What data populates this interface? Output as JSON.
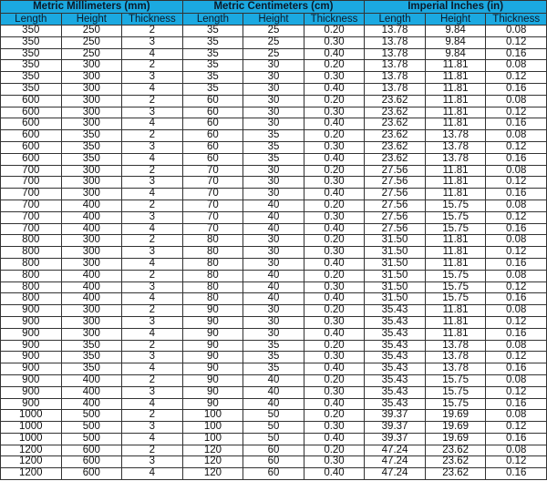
{
  "header": {
    "groups": [
      "Metric Millimeters (mm)",
      "Metric Centimeters (cm)",
      "Imperial Inches (in)"
    ],
    "columns": [
      "Length",
      "Height",
      "Thickness",
      "Length",
      "Height",
      "Thickness",
      "Length",
      "Height",
      "Thickness"
    ],
    "color": "#1ba9e1"
  },
  "rows": [
    [
      "350",
      "250",
      "2",
      "35",
      "25",
      "0.20",
      "13.78",
      "9.84",
      "0.08"
    ],
    [
      "350",
      "250",
      "3",
      "35",
      "25",
      "0.30",
      "13.78",
      "9.84",
      "0.12"
    ],
    [
      "350",
      "250",
      "4",
      "35",
      "25",
      "0.40",
      "13.78",
      "9.84",
      "0.16"
    ],
    [
      "350",
      "300",
      "2",
      "35",
      "30",
      "0.20",
      "13.78",
      "11.81",
      "0.08"
    ],
    [
      "350",
      "300",
      "3",
      "35",
      "30",
      "0.30",
      "13.78",
      "11.81",
      "0.12"
    ],
    [
      "350",
      "300",
      "4",
      "35",
      "30",
      "0.40",
      "13.78",
      "11.81",
      "0.16"
    ],
    [
      "600",
      "300",
      "2",
      "60",
      "30",
      "0.20",
      "23.62",
      "11.81",
      "0.08"
    ],
    [
      "600",
      "300",
      "3",
      "60",
      "30",
      "0.30",
      "23.62",
      "11.81",
      "0.12"
    ],
    [
      "600",
      "300",
      "4",
      "60",
      "30",
      "0.40",
      "23.62",
      "11.81",
      "0.16"
    ],
    [
      "600",
      "350",
      "2",
      "60",
      "35",
      "0.20",
      "23.62",
      "13.78",
      "0.08"
    ],
    [
      "600",
      "350",
      "3",
      "60",
      "35",
      "0.30",
      "23.62",
      "13.78",
      "0.12"
    ],
    [
      "600",
      "350",
      "4",
      "60",
      "35",
      "0.40",
      "23.62",
      "13.78",
      "0.16"
    ],
    [
      "700",
      "300",
      "2",
      "70",
      "30",
      "0.20",
      "27.56",
      "11.81",
      "0.08"
    ],
    [
      "700",
      "300",
      "3",
      "70",
      "30",
      "0.30",
      "27.56",
      "11.81",
      "0.12"
    ],
    [
      "700",
      "300",
      "4",
      "70",
      "30",
      "0.40",
      "27.56",
      "11.81",
      "0.16"
    ],
    [
      "700",
      "400",
      "2",
      "70",
      "40",
      "0.20",
      "27.56",
      "15.75",
      "0.08"
    ],
    [
      "700",
      "400",
      "3",
      "70",
      "40",
      "0.30",
      "27.56",
      "15.75",
      "0.12"
    ],
    [
      "700",
      "400",
      "4",
      "70",
      "40",
      "0.40",
      "27.56",
      "15.75",
      "0.16"
    ],
    [
      "800",
      "300",
      "2",
      "80",
      "30",
      "0.20",
      "31.50",
      "11.81",
      "0.08"
    ],
    [
      "800",
      "300",
      "3",
      "80",
      "30",
      "0.30",
      "31.50",
      "11.81",
      "0.12"
    ],
    [
      "800",
      "300",
      "4",
      "80",
      "30",
      "0.40",
      "31.50",
      "11.81",
      "0.16"
    ],
    [
      "800",
      "400",
      "2",
      "80",
      "40",
      "0.20",
      "31.50",
      "15.75",
      "0.08"
    ],
    [
      "800",
      "400",
      "3",
      "80",
      "40",
      "0.30",
      "31.50",
      "15.75",
      "0.12"
    ],
    [
      "800",
      "400",
      "4",
      "80",
      "40",
      "0.40",
      "31.50",
      "15.75",
      "0.16"
    ],
    [
      "900",
      "300",
      "2",
      "90",
      "30",
      "0.20",
      "35.43",
      "11.81",
      "0.08"
    ],
    [
      "900",
      "300",
      "3",
      "90",
      "30",
      "0.30",
      "35.43",
      "11.81",
      "0.12"
    ],
    [
      "900",
      "300",
      "4",
      "90",
      "30",
      "0.40",
      "35.43",
      "11.81",
      "0.16"
    ],
    [
      "900",
      "350",
      "2",
      "90",
      "35",
      "0.20",
      "35.43",
      "13.78",
      "0.08"
    ],
    [
      "900",
      "350",
      "3",
      "90",
      "35",
      "0.30",
      "35.43",
      "13.78",
      "0.12"
    ],
    [
      "900",
      "350",
      "4",
      "90",
      "35",
      "0.40",
      "35.43",
      "13.78",
      "0.16"
    ],
    [
      "900",
      "400",
      "2",
      "90",
      "40",
      "0.20",
      "35.43",
      "15.75",
      "0.08"
    ],
    [
      "900",
      "400",
      "3",
      "90",
      "40",
      "0.30",
      "35.43",
      "15.75",
      "0.12"
    ],
    [
      "900",
      "400",
      "4",
      "90",
      "40",
      "0.40",
      "35.43",
      "15.75",
      "0.16"
    ],
    [
      "1000",
      "500",
      "2",
      "100",
      "50",
      "0.20",
      "39.37",
      "19.69",
      "0.08"
    ],
    [
      "1000",
      "500",
      "3",
      "100",
      "50",
      "0.30",
      "39.37",
      "19.69",
      "0.12"
    ],
    [
      "1000",
      "500",
      "4",
      "100",
      "50",
      "0.40",
      "39.37",
      "19.69",
      "0.16"
    ],
    [
      "1200",
      "600",
      "2",
      "120",
      "60",
      "0.20",
      "47.24",
      "23.62",
      "0.08"
    ],
    [
      "1200",
      "600",
      "3",
      "120",
      "60",
      "0.30",
      "47.24",
      "23.62",
      "0.12"
    ],
    [
      "1200",
      "600",
      "4",
      "120",
      "60",
      "0.40",
      "47.24",
      "23.62",
      "0.16"
    ]
  ]
}
